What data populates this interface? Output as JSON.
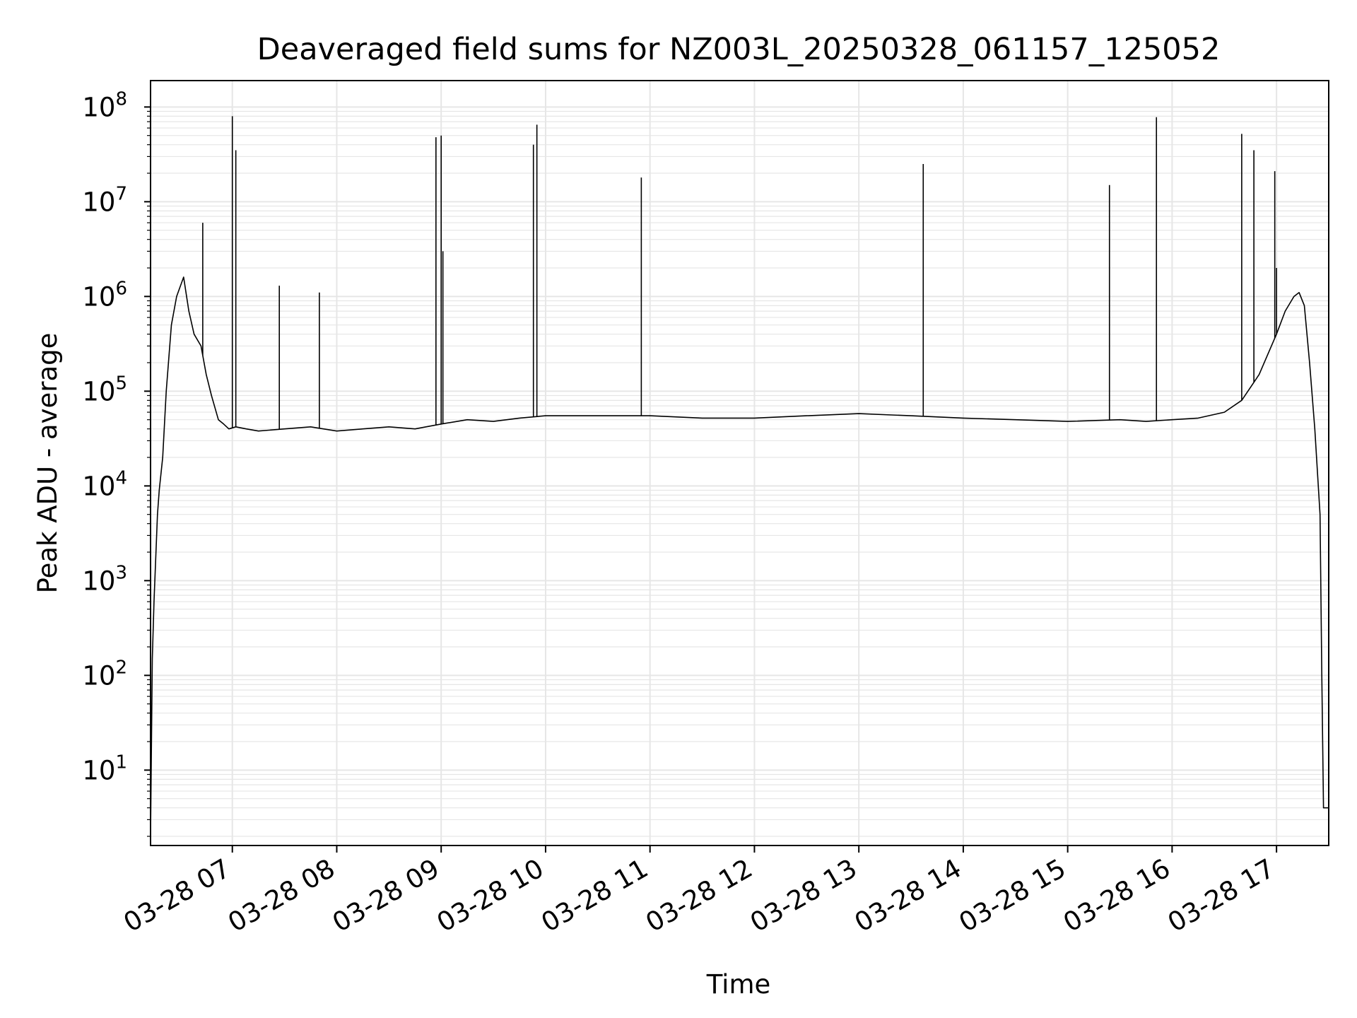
{
  "chart_data": {
    "type": "line",
    "title": "Deaveraged field sums for NZ003L_20250328_061157_125052",
    "xlabel": "Time",
    "ylabel": "Peak ADU - average",
    "y_scale": "log",
    "ylim": [
      1.6,
      190000000
    ],
    "xlim": [
      "2025-03-28 06:13",
      "2025-03-28 17:30"
    ],
    "grid": true,
    "line_color": "#000000",
    "grid_color": "#e6e6e6",
    "x_ticks": [
      {
        "value": "2025-03-28 07:00",
        "label": "03-28 07"
      },
      {
        "value": "2025-03-28 08:00",
        "label": "03-28 08"
      },
      {
        "value": "2025-03-28 09:00",
        "label": "03-28 09"
      },
      {
        "value": "2025-03-28 10:00",
        "label": "03-28 10"
      },
      {
        "value": "2025-03-28 11:00",
        "label": "03-28 11"
      },
      {
        "value": "2025-03-28 12:00",
        "label": "03-28 12"
      },
      {
        "value": "2025-03-28 13:00",
        "label": "03-28 13"
      },
      {
        "value": "2025-03-28 14:00",
        "label": "03-28 14"
      },
      {
        "value": "2025-03-28 15:00",
        "label": "03-28 15"
      },
      {
        "value": "2025-03-28 16:00",
        "label": "03-28 16"
      },
      {
        "value": "2025-03-28 17:00",
        "label": "03-28 17"
      }
    ],
    "y_ticks": [
      {
        "value": 10,
        "base": "10",
        "exp": "1"
      },
      {
        "value": 100,
        "base": "10",
        "exp": "2"
      },
      {
        "value": 1000,
        "base": "10",
        "exp": "3"
      },
      {
        "value": 10000,
        "base": "10",
        "exp": "4"
      },
      {
        "value": 100000,
        "base": "10",
        "exp": "5"
      },
      {
        "value": 1000000,
        "base": "10",
        "exp": "6"
      },
      {
        "value": 10000000,
        "base": "10",
        "exp": "7"
      },
      {
        "value": 100000000,
        "base": "10",
        "exp": "8"
      }
    ],
    "series": [
      {
        "x": [
          "2025-03-28 06:13",
          "2025-03-28 06:14",
          "2025-03-28 06:15",
          "2025-03-28 06:17",
          "2025-03-28 06:18",
          "2025-03-28 06:20",
          "2025-03-28 06:22",
          "2025-03-28 06:25",
          "2025-03-28 06:28",
          "2025-03-28 06:32",
          "2025-03-28 06:35",
          "2025-03-28 06:38",
          "2025-03-28 06:42",
          "2025-03-28 06:45",
          "2025-03-28 06:48",
          "2025-03-28 06:52",
          "2025-03-28 06:55",
          "2025-03-28 06:58",
          "2025-03-28 07:02",
          "2025-03-28 07:08",
          "2025-03-28 07:15",
          "2025-03-28 07:30",
          "2025-03-28 07:45",
          "2025-03-28 08:00",
          "2025-03-28 08:15",
          "2025-03-28 08:30",
          "2025-03-28 08:45",
          "2025-03-28 09:00",
          "2025-03-28 09:15",
          "2025-03-28 09:30",
          "2025-03-28 09:45",
          "2025-03-28 10:00",
          "2025-03-28 10:30",
          "2025-03-28 11:00",
          "2025-03-28 11:30",
          "2025-03-28 12:00",
          "2025-03-28 12:30",
          "2025-03-28 13:00",
          "2025-03-28 13:30",
          "2025-03-28 14:00",
          "2025-03-28 14:30",
          "2025-03-28 15:00",
          "2025-03-28 15:30",
          "2025-03-28 15:45",
          "2025-03-28 16:00",
          "2025-03-28 16:15",
          "2025-03-28 16:30",
          "2025-03-28 16:40",
          "2025-03-28 16:50",
          "2025-03-28 17:00",
          "2025-03-28 17:05",
          "2025-03-28 17:10",
          "2025-03-28 17:13",
          "2025-03-28 17:16",
          "2025-03-28 17:19",
          "2025-03-28 17:22",
          "2025-03-28 17:25",
          "2025-03-28 17:26",
          "2025-03-28 17:27",
          "2025-03-28 17:30"
        ],
        "y": [
          2,
          150,
          600,
          5000,
          9000,
          20000,
          100000,
          500000,
          1000000,
          1600000,
          700000,
          400000,
          300000,
          150000,
          90000,
          50000,
          45000,
          40000,
          42000,
          40000,
          38000,
          40000,
          42000,
          38000,
          40000,
          42000,
          40000,
          45000,
          50000,
          48000,
          52000,
          55000,
          55000,
          55000,
          52000,
          52000,
          55000,
          58000,
          55000,
          52000,
          50000,
          48000,
          50000,
          48000,
          50000,
          52000,
          60000,
          80000,
          150000,
          400000,
          700000,
          1000000,
          1100000,
          800000,
          200000,
          40000,
          5000,
          100,
          4,
          4
        ]
      }
    ],
    "spikes": [
      {
        "x": "2025-03-28 06:43",
        "y": 6000000
      },
      {
        "x": "2025-03-28 07:00",
        "y": 80000000
      },
      {
        "x": "2025-03-28 07:02",
        "y": 35000000
      },
      {
        "x": "2025-03-28 07:27",
        "y": 1300000
      },
      {
        "x": "2025-03-28 07:50",
        "y": 1100000
      },
      {
        "x": "2025-03-28 08:57",
        "y": 48000000
      },
      {
        "x": "2025-03-28 09:00",
        "y": 50000000
      },
      {
        "x": "2025-03-28 09:01",
        "y": 3000000
      },
      {
        "x": "2025-03-28 09:53",
        "y": 40000000
      },
      {
        "x": "2025-03-28 09:55",
        "y": 65000000
      },
      {
        "x": "2025-03-28 10:55",
        "y": 18000000
      },
      {
        "x": "2025-03-28 13:37",
        "y": 25000000
      },
      {
        "x": "2025-03-28 15:24",
        "y": 15000000
      },
      {
        "x": "2025-03-28 15:51",
        "y": 78000000
      },
      {
        "x": "2025-03-28 16:40",
        "y": 52000000
      },
      {
        "x": "2025-03-28 16:47",
        "y": 35000000
      },
      {
        "x": "2025-03-28 16:59",
        "y": 21000000
      },
      {
        "x": "2025-03-28 17:00",
        "y": 2000000
      }
    ]
  }
}
